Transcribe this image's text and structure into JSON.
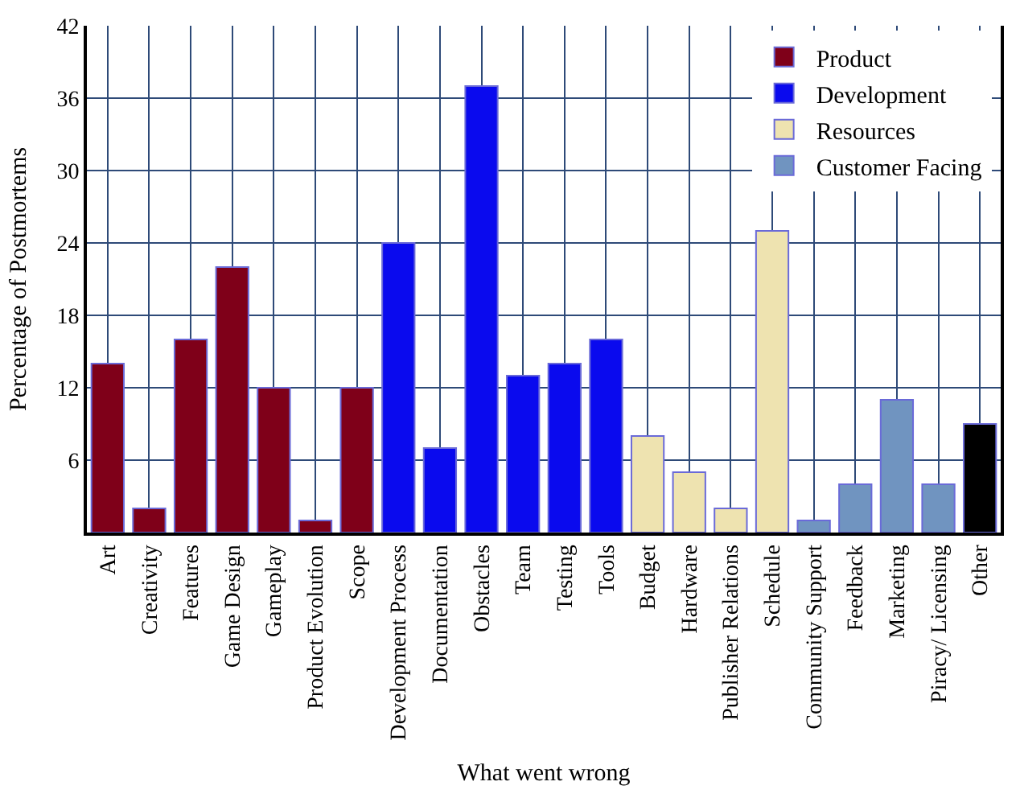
{
  "chart_data": {
    "type": "bar",
    "xlabel": "What went wrong",
    "ylabel": "Percentage of Postmortems",
    "categories": [
      "Art",
      "Creativity",
      "Features",
      "Game Design",
      "Gameplay",
      "Product Evolution",
      "Scope",
      "Development Process",
      "Documentation",
      "Obstacles",
      "Team",
      "Testing",
      "Tools",
      "Budget",
      "Hardware",
      "Publisher Relations",
      "Schedule",
      "Community Support",
      "Feedback",
      "Marketing",
      "Piracy/ Licensing",
      "Other"
    ],
    "series": [
      {
        "name": "Product",
        "color": "#7f0019",
        "values": [
          14,
          2,
          16,
          22,
          12,
          1,
          12,
          null,
          null,
          null,
          null,
          null,
          null,
          null,
          null,
          null,
          null,
          null,
          null,
          null,
          null,
          null
        ]
      },
      {
        "name": "Development",
        "color": "#0a0aee",
        "values": [
          null,
          null,
          null,
          null,
          null,
          null,
          null,
          24,
          7,
          37,
          13,
          14,
          16,
          null,
          null,
          null,
          null,
          null,
          null,
          null,
          null,
          null
        ]
      },
      {
        "name": "Resources",
        "color": "#eee3b0",
        "values": [
          null,
          null,
          null,
          null,
          null,
          null,
          null,
          null,
          null,
          null,
          null,
          null,
          null,
          8,
          5,
          2,
          25,
          null,
          null,
          null,
          null,
          null
        ]
      },
      {
        "name": "Customer Facing",
        "color": "#7094c0",
        "values": [
          null,
          null,
          null,
          null,
          null,
          null,
          null,
          null,
          null,
          null,
          null,
          null,
          null,
          null,
          null,
          null,
          null,
          1,
          4,
          11,
          4,
          null
        ]
      },
      {
        "color": "#000000",
        "values": [
          null,
          null,
          null,
          null,
          null,
          null,
          null,
          null,
          null,
          null,
          null,
          null,
          null,
          null,
          null,
          null,
          null,
          null,
          null,
          null,
          null,
          9
        ]
      }
    ],
    "ylim": [
      0,
      42
    ],
    "yticks": [
      6,
      12,
      18,
      24,
      30,
      36,
      42
    ],
    "grid": true,
    "legend": "top right"
  }
}
